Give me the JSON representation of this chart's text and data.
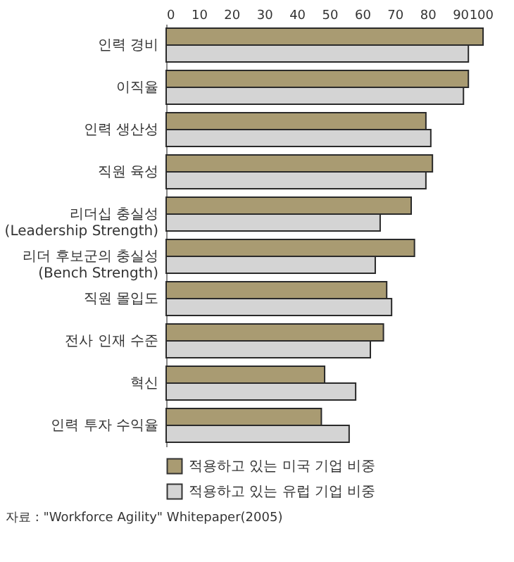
{
  "chart_data": {
    "type": "bar",
    "orientation": "horizontal",
    "categories": [
      "인력 경비",
      "이직율",
      "인력 생산성",
      "직원 육성",
      "리더십 충실성\n(Leadership Strength)",
      "리더 후보군의 충실성\n(Bench Strength)",
      "직원 몰입도",
      "전사 인재 수준",
      "혁신",
      "인력 투자 수익율"
    ],
    "series": [
      {
        "name": "적용하고 있는 미국 기업 비중",
        "color": "#a99b72",
        "values": [
          97,
          92.5,
          79.5,
          81.5,
          75,
          76,
          67.5,
          66.5,
          48.5,
          47.5
        ]
      },
      {
        "name": "적용하고 있는 유럽 기업 비중",
        "color": "#d4d4d4",
        "values": [
          92.5,
          91,
          81,
          79.5,
          65.5,
          64,
          69,
          62.5,
          58,
          56
        ]
      }
    ],
    "xlim": [
      0,
      100
    ],
    "xticks": [
      0,
      10,
      20,
      30,
      40,
      50,
      60,
      70,
      80,
      90,
      100
    ],
    "grid": false,
    "legend": "bottom",
    "annotations": [
      "자료 : \"Workforce Agility\" Whitepaper(2005)"
    ]
  }
}
